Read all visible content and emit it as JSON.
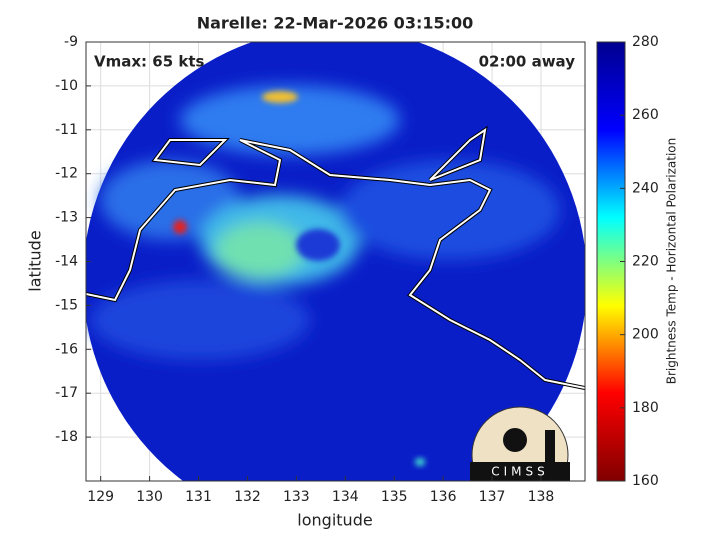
{
  "chart_data": {
    "type": "image-map",
    "title": "Narelle: 22-Mar-2026 03:15:00",
    "annotations": [
      "Vmax: 65 kts",
      "02:00 away"
    ],
    "xlabel": "longitude",
    "ylabel": "latitude",
    "xlim": [
      128.7,
      138.9
    ],
    "ylim": [
      -19,
      -9
    ],
    "xticks": [
      129,
      130,
      131,
      132,
      133,
      134,
      135,
      136,
      137,
      138
    ],
    "yticks": [
      -18,
      -17,
      -16,
      -15,
      -14,
      -13,
      -12,
      -11,
      -10,
      -9
    ],
    "colorbar": {
      "label": "Brightness Temp - Horizontal Polarization",
      "lim": [
        160,
        280
      ],
      "ticks": [
        160,
        180,
        200,
        220,
        240,
        260,
        280
      ],
      "colors": [
        "#800000",
        "#ff0000",
        "#ffff00",
        "#00ffff",
        "#0000ff",
        "#00008f"
      ]
    },
    "logo": "CIMSS"
  }
}
